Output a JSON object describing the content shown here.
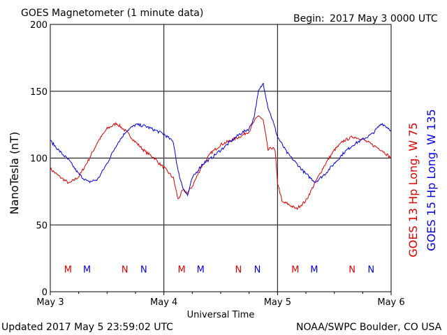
{
  "header": {
    "title": "GOES Magnetometer (1 minute data)",
    "begin_label": "Begin:",
    "begin_value": "2017 May 3 0000 UTC"
  },
  "footer": {
    "updated": "Updated 2017 May  5 23:59:02 UTC",
    "credit": "NOAA/SWPC Boulder, CO USA"
  },
  "colors": {
    "red": "#e00000",
    "blue": "#0000e6",
    "axis": "#000000",
    "grid": "#000000"
  },
  "chart_data": {
    "type": "line",
    "title": "GOES Magnetometer (1 minute data)",
    "xlabel": "Universal Time",
    "ylabel": "NanoTesla (nT)",
    "xlim": [
      0,
      72
    ],
    "ylim": [
      0,
      200
    ],
    "x_unit": "hours since 2017 May 3 0000 UTC",
    "x_ticks": [
      {
        "x": 0,
        "label": "May 3"
      },
      {
        "x": 24,
        "label": "May 4"
      },
      {
        "x": 48,
        "label": "May 5"
      },
      {
        "x": 72,
        "label": "May 6"
      }
    ],
    "y_ticks": [
      0,
      50,
      100,
      150,
      200
    ],
    "grid": true,
    "series": [
      {
        "name": "GOES 13 Hp  Long. W 75",
        "color": "#e00000",
        "x": [
          0,
          2,
          4,
          6,
          8,
          10,
          12,
          14,
          16,
          18,
          20,
          22,
          23,
          24,
          26,
          27,
          28,
          29,
          30,
          32,
          34,
          36,
          38,
          40,
          42,
          43,
          44,
          45,
          46,
          47,
          47.5,
          48,
          49,
          50,
          52,
          54,
          56,
          58,
          60,
          62,
          64,
          66,
          68,
          70,
          72
        ],
        "y": [
          92,
          86,
          81,
          86,
          98,
          112,
          122,
          126,
          120,
          112,
          105,
          100,
          96,
          93,
          85,
          69,
          76,
          74,
          79,
          94,
          104,
          110,
          113,
          116,
          120,
          127,
          132,
          128,
          106,
          108,
          105,
          82,
          67,
          66,
          62,
          68,
          82,
          95,
          106,
          113,
          116,
          114,
          110,
          106,
          100
        ]
      },
      {
        "name": "GOES 15 Hp  Long. W 135",
        "color": "#0000e6",
        "x": [
          0,
          2,
          4,
          6,
          8,
          10,
          12,
          14,
          16,
          18,
          20,
          22,
          24,
          26,
          27,
          28,
          29,
          30,
          32,
          34,
          36,
          38,
          40,
          42,
          43,
          44,
          45,
          46,
          47,
          48,
          49,
          50,
          52,
          54,
          56,
          58,
          60,
          62,
          64,
          66,
          68,
          70,
          72
        ],
        "y": [
          113,
          105,
          98,
          88,
          82,
          84,
          96,
          110,
          120,
          125,
          124,
          121,
          118,
          112,
          90,
          78,
          72,
          85,
          95,
          100,
          106,
          112,
          118,
          122,
          130,
          150,
          156,
          138,
          128,
          116,
          110,
          104,
          96,
          88,
          82,
          88,
          96,
          104,
          110,
          114,
          118,
          126,
          121
        ]
      }
    ],
    "annotations": [
      {
        "x": 3.75,
        "label": "M",
        "color": "#e00000"
      },
      {
        "x": 7.75,
        "label": "M",
        "color": "#0000e6"
      },
      {
        "x": 15.75,
        "label": "N",
        "color": "#e00000"
      },
      {
        "x": 19.75,
        "label": "N",
        "color": "#0000e6"
      },
      {
        "x": 27.75,
        "label": "M",
        "color": "#e00000"
      },
      {
        "x": 31.75,
        "label": "M",
        "color": "#0000e6"
      },
      {
        "x": 39.75,
        "label": "N",
        "color": "#e00000"
      },
      {
        "x": 43.75,
        "label": "N",
        "color": "#0000e6"
      },
      {
        "x": 51.75,
        "label": "M",
        "color": "#e00000"
      },
      {
        "x": 55.75,
        "label": "M",
        "color": "#0000e6"
      },
      {
        "x": 63.75,
        "label": "N",
        "color": "#e00000"
      },
      {
        "x": 67.75,
        "label": "N",
        "color": "#0000e6"
      }
    ],
    "annotation_level": 17,
    "legend_placement": "right-vertical"
  }
}
